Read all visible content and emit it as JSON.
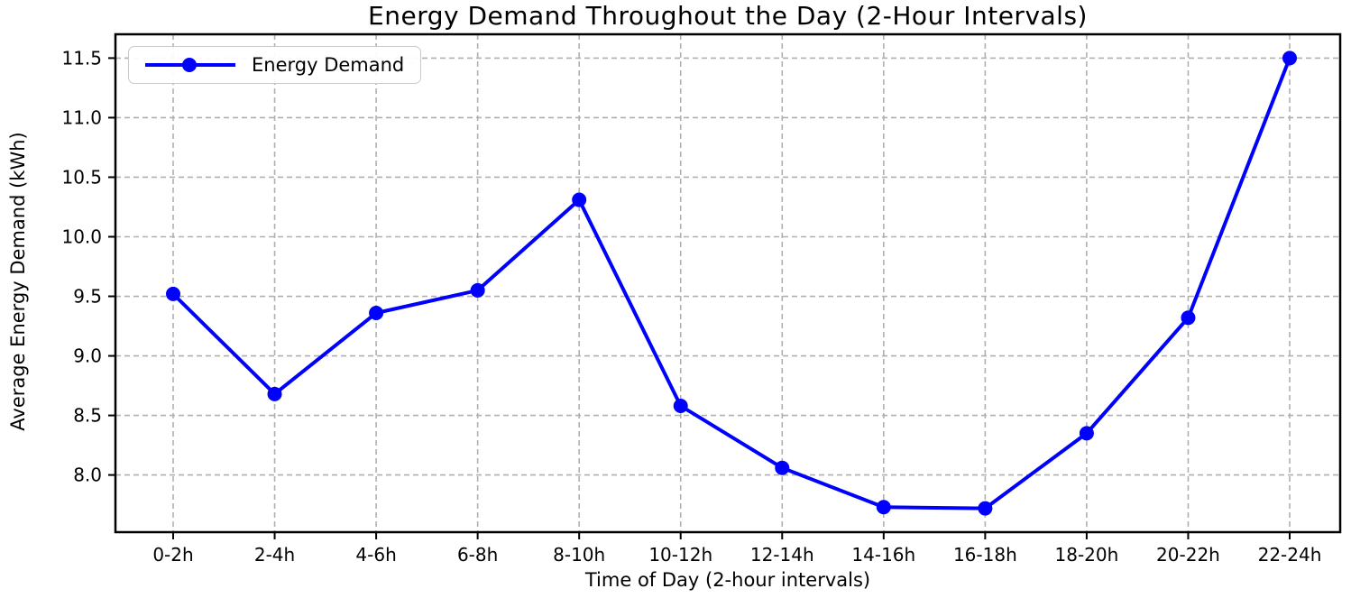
{
  "title": "Energy Demand Throughout the Day (2-Hour Intervals)",
  "legend": {
    "label": "Energy Demand"
  },
  "colors": {
    "line": "#0000ff",
    "grid": "#b0b0b0",
    "axis": "#000000",
    "background": "#ffffff",
    "legend_border": "#c9c9c9"
  },
  "chart_data": {
    "type": "line",
    "title": "Energy Demand Throughout the Day (2-Hour Intervals)",
    "xlabel": "Time of Day (2-hour intervals)",
    "ylabel": "Average Energy Demand (kWh)",
    "categories": [
      "0-2h",
      "2-4h",
      "4-6h",
      "6-8h",
      "8-10h",
      "10-12h",
      "12-14h",
      "14-16h",
      "16-18h",
      "18-20h",
      "20-22h",
      "22-24h"
    ],
    "series": [
      {
        "name": "Energy Demand",
        "color": "#0000ff",
        "marker": "circle",
        "values": [
          9.52,
          8.68,
          9.36,
          9.55,
          10.31,
          8.58,
          8.06,
          7.73,
          7.72,
          8.35,
          9.32,
          11.5
        ]
      }
    ],
    "yticks": [
      8.0,
      8.5,
      9.0,
      9.5,
      10.0,
      10.5,
      11.0,
      11.5
    ],
    "ylim": [
      7.52,
      11.7
    ],
    "grid": true,
    "grid_style": "dashed",
    "legend_position": "upper-left"
  }
}
